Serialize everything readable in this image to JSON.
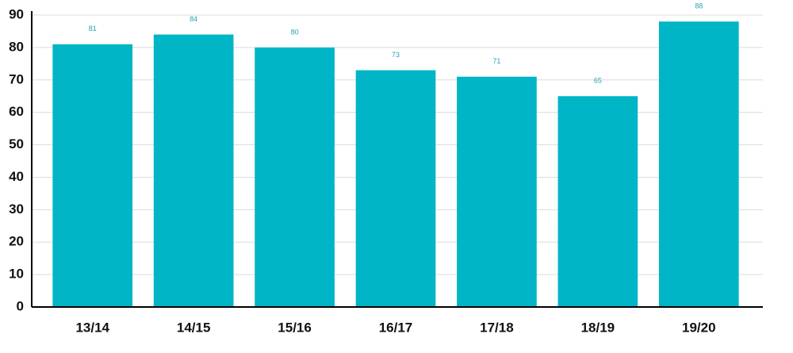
{
  "chart_data": {
    "type": "bar",
    "categories": [
      "13/14",
      "14/15",
      "15/16",
      "16/17",
      "17/18",
      "18/19",
      "19/20"
    ],
    "values": [
      81,
      84,
      80,
      73,
      71,
      65,
      88
    ],
    "color": "#00b5c6",
    "ylim": [
      0,
      90
    ],
    "yticks": [
      0,
      10,
      20,
      30,
      40,
      50,
      60,
      70,
      80,
      90
    ],
    "grid": true
  }
}
